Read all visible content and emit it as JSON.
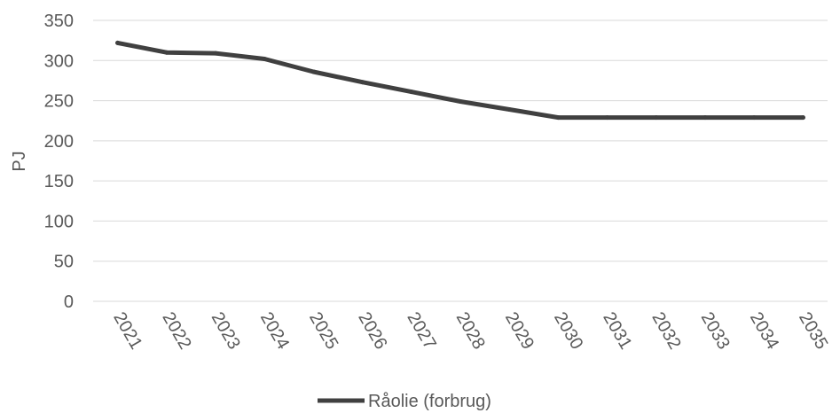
{
  "chart_data": {
    "type": "line",
    "title": "",
    "xlabel": "",
    "ylabel": "PJ",
    "ylim": [
      0,
      350
    ],
    "ytick_step": 50,
    "yticks": [
      "0",
      "50",
      "100",
      "150",
      "200",
      "250",
      "300",
      "350"
    ],
    "grid": true,
    "legend_placement": "bottom",
    "x": [
      "2021",
      "2022",
      "2023",
      "2024",
      "2025",
      "2026",
      "2027",
      "2028",
      "2029",
      "2030",
      "2031",
      "2032",
      "2033",
      "2034",
      "2035"
    ],
    "series": [
      {
        "name": "Råolie (forbrug)",
        "color": "#404040",
        "values": [
          322,
          310,
          309,
          302,
          286,
          273,
          261,
          249,
          239,
          229,
          229,
          229,
          229,
          229,
          229
        ]
      }
    ]
  },
  "colors": {
    "grid": "#d9d9d9",
    "text": "#595959",
    "line": "#404040"
  }
}
